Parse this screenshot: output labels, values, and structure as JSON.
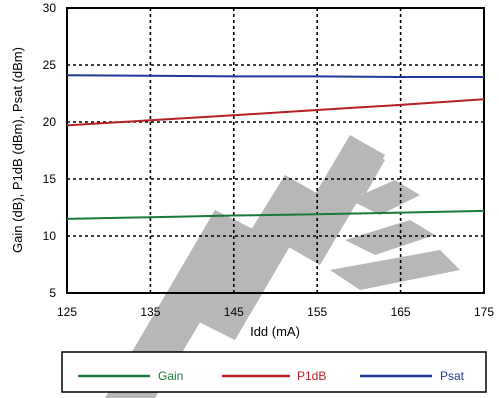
{
  "chart_data": {
    "type": "line",
    "xlabel": "Idd (mA)",
    "ylabel": "Gain (dB), P1dB (dBm), Psat (dBm)",
    "xlim": [
      125,
      175
    ],
    "ylim": [
      5,
      30
    ],
    "xticks": [
      "125",
      "135",
      "145",
      "155",
      "165",
      "175"
    ],
    "yticks": [
      "5",
      "10",
      "15",
      "20",
      "25",
      "30"
    ],
    "grid": true,
    "legend_position": "bottom",
    "x": [
      125,
      135,
      145,
      155,
      165,
      175
    ],
    "series": [
      {
        "name": "Gain",
        "color": "#1a7a3a",
        "values": [
          11.5,
          11.65,
          11.8,
          11.9,
          12.05,
          12.2
        ]
      },
      {
        "name": "P1dB",
        "color": "#b82025",
        "values": [
          19.7,
          20.15,
          20.6,
          21.05,
          21.5,
          22.0
        ]
      },
      {
        "name": "Psat",
        "color": "#1e3a96",
        "values": [
          24.1,
          24.05,
          24.0,
          24.0,
          23.95,
          23.95
        ]
      }
    ]
  }
}
